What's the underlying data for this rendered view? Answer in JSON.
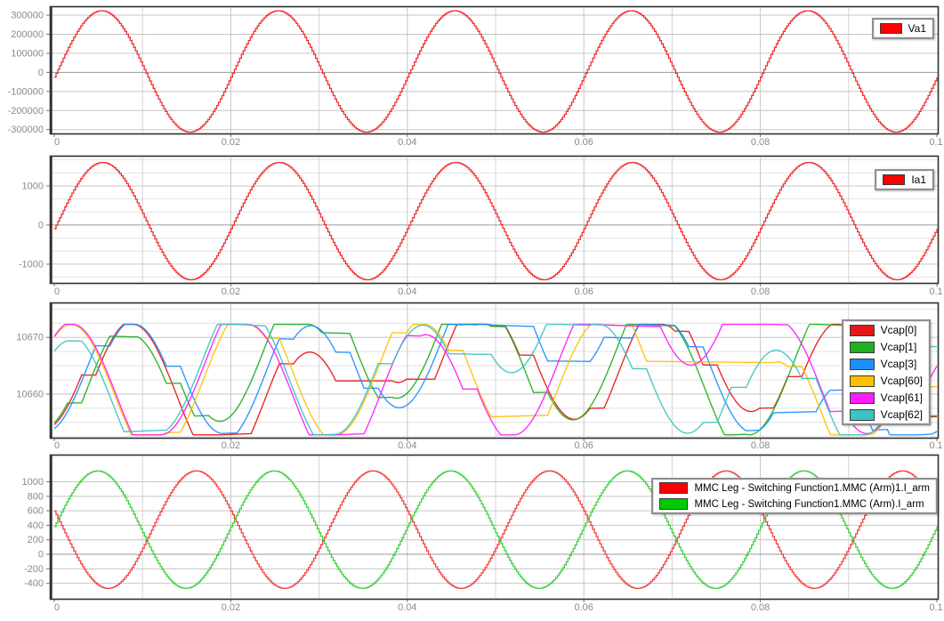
{
  "scope": {
    "background": "#ffffff"
  },
  "style": {
    "tick_label_color": "#8a8a8a",
    "grid_major": "#c6c6c6",
    "grid_minor": "#e2e2e2",
    "grid_zero": "#9a9a9a",
    "grid_vertical": "#d4d4d4",
    "plot_border": "#2f2f2f",
    "tick_mark": "#777777"
  },
  "x_axis": {
    "min": 0,
    "max": 0.1,
    "minor_grid_step": 0.01,
    "ticks": [
      {
        "value": 0,
        "label": "0"
      },
      {
        "value": 0.02,
        "label": "0.02"
      },
      {
        "value": 0.04,
        "label": "0.04"
      },
      {
        "value": 0.06,
        "label": "0.06"
      },
      {
        "value": 0.08,
        "label": "0.08"
      },
      {
        "value": 0.1,
        "label": "0.1"
      }
    ]
  },
  "chart_data": [
    {
      "type": "line",
      "panel": "phase-voltage",
      "legend_position": "top-right",
      "xlim": [
        0,
        0.1
      ],
      "y": {
        "min": -320000,
        "max": 342000,
        "ticks": [
          {
            "value": 300000,
            "label": "300000"
          },
          {
            "value": 200000,
            "label": "200000"
          },
          {
            "value": 100000,
            "label": "100000"
          },
          {
            "value": 0,
            "label": "0"
          },
          {
            "value": -100000,
            "label": "-100000"
          },
          {
            "value": -200000,
            "label": "-200000"
          },
          {
            "value": -300000,
            "label": "-300000"
          }
        ]
      },
      "series": [
        {
          "name": "Va1",
          "color": "#ff0000",
          "line_color": "#f21c1c",
          "waveform": {
            "kind": "sampled_sine_hold",
            "offset": 5000,
            "amplitude": 318000,
            "frequency_hz": 50,
            "phase_rad": -0.094,
            "sample_time_s": 0.0002
          }
        }
      ]
    },
    {
      "type": "line",
      "panel": "phase-current",
      "legend_position": "top-right",
      "xlim": [
        0,
        0.1
      ],
      "y": {
        "min": -1480,
        "max": 1750,
        "minor_step": 333.33,
        "ticks": [
          {
            "value": 1000,
            "label": "1000"
          },
          {
            "value": 0,
            "label": "0"
          },
          {
            "value": -1000,
            "label": "-1000"
          }
        ]
      },
      "series": [
        {
          "name": "Ia1",
          "color": "#ff0000",
          "line_color": "#f21c1c",
          "waveform": {
            "kind": "sampled_sine_hold",
            "offset": 100,
            "amplitude": 1500,
            "frequency_hz": 50,
            "phase_rad": -0.13,
            "sample_time_s": 0.0002
          }
        }
      ]
    },
    {
      "type": "line",
      "panel": "capacitor-voltages",
      "legend_position": "top-right",
      "xlim": [
        0,
        0.1
      ],
      "y": {
        "min": 10652.3,
        "max": 10676,
        "minor_step": 2.5,
        "ticks": [
          {
            "value": 10670,
            "label": "10670"
          },
          {
            "value": 10660,
            "label": "10660"
          }
        ]
      },
      "value_range_approx": [
        10653,
        10672
      ],
      "series": [
        {
          "name": "Vcap[0]",
          "color": "#e81717",
          "line_color": "#e81717",
          "waveform": {
            "kind": "gated_integral_sine",
            "base": 10663,
            "k": 4000,
            "frequency_hz": 50,
            "phase_rad": 0.31,
            "v0": 10654.5,
            "seed": 3,
            "slot_s": 0.0016,
            "duty": 0.7,
            "lambda": 6,
            "clamp": [
              10652.8,
              10672.3
            ],
            "dt_s": 0.0001
          }
        },
        {
          "name": "Vcap[1]",
          "color": "#1faf1f",
          "line_color": "#1faf1f",
          "waveform": {
            "kind": "gated_integral_sine",
            "base": 10663,
            "k": 4000,
            "frequency_hz": 50,
            "phase_rad": 0.36,
            "v0": 10654.8,
            "seed": 7,
            "slot_s": 0.0016,
            "duty": 0.7,
            "lambda": 6,
            "clamp": [
              10652.8,
              10672.3
            ],
            "dt_s": 0.0001
          }
        },
        {
          "name": "Vcap[3]",
          "color": "#1e8fff",
          "line_color": "#1e8fff",
          "waveform": {
            "kind": "gated_integral_sine",
            "base": 10663,
            "k": 4000,
            "frequency_hz": 50,
            "phase_rad": 0.26,
            "v0": 10653.8,
            "seed": 11,
            "slot_s": 0.0016,
            "duty": 0.7,
            "lambda": 6,
            "clamp": [
              10652.8,
              10672.3
            ],
            "dt_s": 0.0001
          }
        },
        {
          "name": "Vcap[60]",
          "color": "#ffc000",
          "line_color": "#ffc000",
          "waveform": {
            "kind": "gated_integral_sine",
            "base": 10663,
            "k": 4000,
            "frequency_hz": 50,
            "phase_rad": 2.51,
            "v0": 10669.8,
            "seed": 5,
            "slot_s": 0.0016,
            "duty": 0.7,
            "lambda": 6,
            "clamp": [
              10652.8,
              10672.3
            ],
            "dt_s": 0.0001
          }
        },
        {
          "name": "Vcap[61]",
          "color": "#ff1cff",
          "line_color": "#ff1cff",
          "waveform": {
            "kind": "gated_integral_sine",
            "base": 10663,
            "k": 4000,
            "frequency_hz": 50,
            "phase_rad": 2.46,
            "v0": 10669.9,
            "seed": 9,
            "slot_s": 0.0016,
            "duty": 0.7,
            "lambda": 6,
            "clamp": [
              10652.8,
              10672.3
            ],
            "dt_s": 0.0001
          }
        },
        {
          "name": "Vcap[62]",
          "color": "#3cc3c3",
          "line_color": "#3cc3c3",
          "waveform": {
            "kind": "gated_integral_sine",
            "base": 10663,
            "k": 4000,
            "frequency_hz": 50,
            "phase_rad": 2.56,
            "v0": 10667.3,
            "seed": 13,
            "slot_s": 0.0016,
            "duty": 0.7,
            "lambda": 6,
            "clamp": [
              10652.8,
              10672.3
            ],
            "dt_s": 0.0001
          }
        }
      ]
    },
    {
      "type": "line",
      "panel": "arm-currents",
      "legend_position": "top-right",
      "xlim": [
        0,
        0.1
      ],
      "y": {
        "min": -613,
        "max": 1362,
        "ticks": [
          {
            "value": 1000,
            "label": "1000"
          },
          {
            "value": 800,
            "label": "800"
          },
          {
            "value": 600,
            "label": "600"
          },
          {
            "value": 400,
            "label": "400"
          },
          {
            "value": 200,
            "label": "200"
          },
          {
            "value": 0,
            "label": "0"
          },
          {
            "value": -200,
            "label": "-200"
          },
          {
            "value": -400,
            "label": "-400"
          }
        ]
      },
      "series": [
        {
          "name": "MMC Leg - Switching Function1.MMC (Arm)1.I_arm",
          "color": "#ff0000",
          "line_color": "#f23030",
          "waveform": {
            "kind": "sampled_sine_hold",
            "offset": 340,
            "amplitude": 810,
            "frequency_hz": 50,
            "phase_rad": 2.82,
            "sample_time_s": 0.0002
          }
        },
        {
          "name": "MMC Leg - Switching Function1.MMC (Arm).I_arm",
          "color": "#00cc00",
          "line_color": "#2ecc2e",
          "waveform": {
            "kind": "sampled_sine_hold",
            "offset": 340,
            "amplitude": 810,
            "frequency_hz": 50,
            "phase_rad": 0.05,
            "sample_time_s": 0.0002
          }
        }
      ]
    }
  ]
}
